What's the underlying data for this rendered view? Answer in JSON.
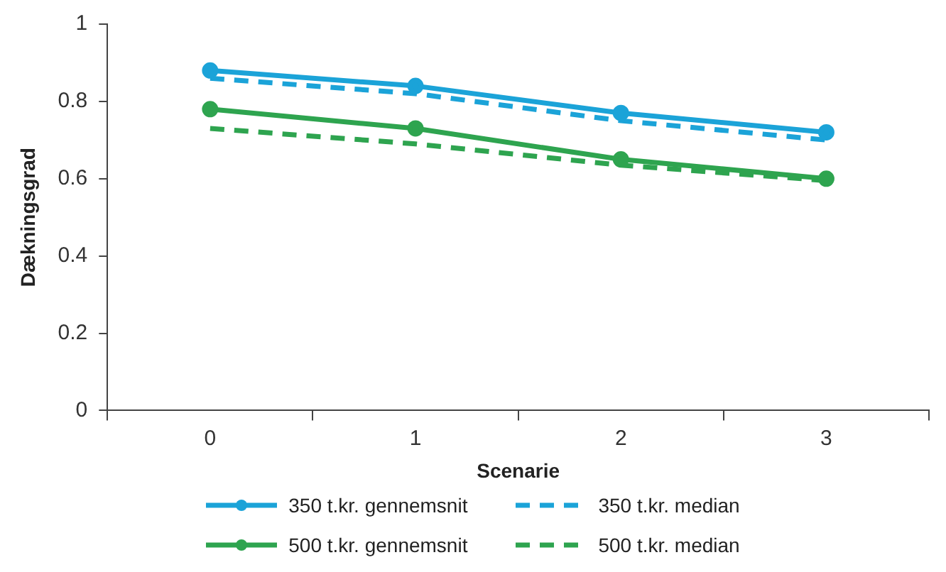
{
  "chart_data": {
    "type": "line",
    "xlabel": "Scenarie",
    "ylabel": "Dækningsgrad",
    "categories": [
      "0",
      "1",
      "2",
      "3"
    ],
    "series": [
      {
        "name": "350 t.kr. gennemsnit",
        "color": "#1ba3d8",
        "values": [
          0.88,
          0.84,
          0.77,
          0.72
        ],
        "marker": "circle",
        "line_style": "solid"
      },
      {
        "name": "350 t.kr. median",
        "color": "#1ba3d8",
        "values": [
          0.86,
          0.82,
          0.75,
          0.7
        ],
        "marker": "none",
        "line_style": "dashed"
      },
      {
        "name": "500 t.kr. gennemsnit",
        "color": "#2ea44f",
        "values": [
          0.78,
          0.73,
          0.65,
          0.6
        ],
        "marker": "circle",
        "line_style": "solid"
      },
      {
        "name": "500 t.kr. median",
        "color": "#2ea44f",
        "values": [
          0.73,
          0.69,
          0.635,
          0.595
        ],
        "marker": "none",
        "line_style": "dashed"
      }
    ],
    "ylim": [
      0,
      1
    ],
    "yticks": [
      0,
      0.2,
      0.4,
      0.6,
      0.8,
      1
    ],
    "legend": "bottom"
  }
}
